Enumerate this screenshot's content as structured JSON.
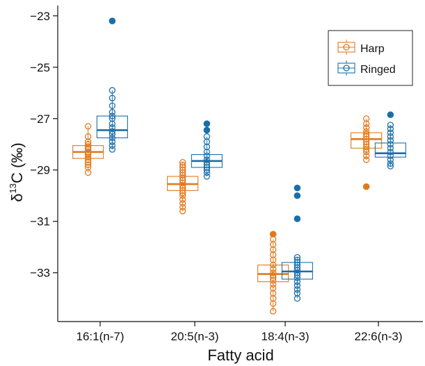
{
  "chart_data": {
    "type": "boxplot",
    "xlabel": "Fatty acid",
    "ylabel": "δ13C (‰)",
    "ylabel_parts": {
      "symbol": "δ",
      "superscript": "13",
      "rest": "C (‰)"
    },
    "ylim": [
      -34.9,
      -22.6
    ],
    "yticks": [
      -23,
      -25,
      -27,
      -29,
      -31,
      -33
    ],
    "ytick_labels": [
      "−23",
      "−25",
      "−27",
      "−29",
      "−31",
      "−33"
    ],
    "categories": [
      "16:1(n-7)",
      "20:5(n-3)",
      "18:4(n-3)",
      "22:6(n-3)"
    ],
    "legend": {
      "position": "top-right"
    },
    "series": [
      {
        "name": "Harp",
        "color": "#E07A1F",
        "boxes": [
          {
            "q1": -28.55,
            "median": -28.3,
            "q3": -28.05,
            "whisker_low": -29.1,
            "whisker_high": -27.3,
            "points": [
              -27.3,
              -27.7,
              -27.9,
              -28.0,
              -28.1,
              -28.15,
              -28.2,
              -28.3,
              -28.35,
              -28.4,
              -28.5,
              -28.6,
              -28.7,
              -28.8,
              -28.9,
              -29.1
            ],
            "outliers": []
          },
          {
            "q1": -29.8,
            "median": -29.55,
            "q3": -29.25,
            "whisker_low": -30.6,
            "whisker_high": -28.7,
            "points": [
              -28.7,
              -28.8,
              -28.9,
              -29.0,
              -29.1,
              -29.2,
              -29.3,
              -29.4,
              -29.5,
              -29.6,
              -29.7,
              -29.8,
              -29.9,
              -30.0,
              -30.15,
              -30.3,
              -30.45,
              -30.6
            ],
            "outliers": []
          },
          {
            "q1": -33.35,
            "median": -33.05,
            "q3": -32.7,
            "whisker_low": -34.5,
            "whisker_high": -31.7,
            "points": [
              -31.7,
              -31.9,
              -32.1,
              -32.3,
              -32.5,
              -32.7,
              -32.85,
              -33.0,
              -33.1,
              -33.2,
              -33.3,
              -33.45,
              -33.6,
              -33.8,
              -34.0,
              -34.2,
              -34.5
            ],
            "outliers": [
              -31.5
            ]
          },
          {
            "q1": -28.15,
            "median": -27.8,
            "q3": -27.55,
            "whisker_low": -28.6,
            "whisker_high": -27.0,
            "points": [
              -27.0,
              -27.2,
              -27.35,
              -27.5,
              -27.6,
              -27.7,
              -27.8,
              -27.9,
              -28.0,
              -28.1,
              -28.2,
              -28.3,
              -28.45,
              -28.6
            ],
            "outliers": [
              -29.65
            ]
          }
        ]
      },
      {
        "name": "Ringed",
        "color": "#1A6FA8",
        "boxes": [
          {
            "q1": -27.75,
            "median": -27.45,
            "q3": -26.9,
            "whisker_low": -28.2,
            "whisker_high": -25.9,
            "points": [
              -25.9,
              -26.2,
              -26.5,
              -26.75,
              -26.9,
              -27.0,
              -27.2,
              -27.35,
              -27.5,
              -27.6,
              -27.75,
              -27.9,
              -28.05,
              -28.2
            ],
            "outliers": [
              -23.2
            ]
          },
          {
            "q1": -28.9,
            "median": -28.65,
            "q3": -28.4,
            "whisker_low": -29.25,
            "whisker_high": -27.7,
            "points": [
              -27.7,
              -27.9,
              -28.1,
              -28.3,
              -28.45,
              -28.6,
              -28.7,
              -28.8,
              -28.9,
              -29.0,
              -29.1,
              -29.25
            ],
            "outliers": [
              -27.2,
              -27.45
            ]
          },
          {
            "q1": -33.25,
            "median": -32.95,
            "q3": -32.6,
            "whisker_low": -34.0,
            "whisker_high": -32.4,
            "points": [
              -32.4,
              -32.5,
              -32.6,
              -32.7,
              -32.8,
              -32.9,
              -33.0,
              -33.1,
              -33.2,
              -33.35,
              -33.5,
              -33.65,
              -33.8,
              -34.0
            ],
            "outliers": [
              -29.7,
              -30.0,
              -30.9
            ]
          },
          {
            "q1": -28.5,
            "median": -28.35,
            "q3": -27.95,
            "whisker_low": -28.85,
            "whisker_high": -27.25,
            "points": [
              -27.25,
              -27.4,
              -27.55,
              -27.7,
              -27.85,
              -28.0,
              -28.15,
              -28.3,
              -28.45,
              -28.6,
              -28.75,
              -28.85
            ],
            "outliers": [
              -26.85
            ]
          }
        ]
      }
    ]
  }
}
